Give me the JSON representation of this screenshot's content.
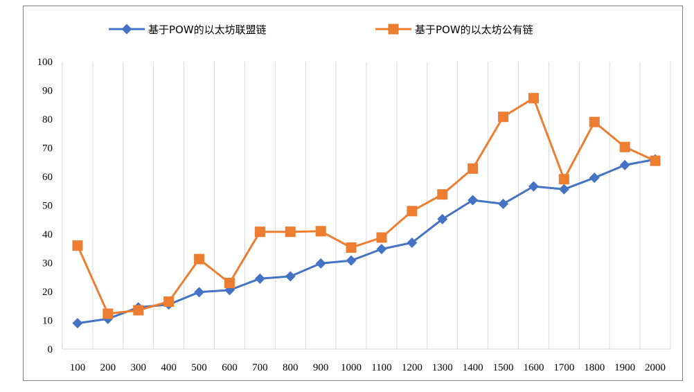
{
  "chart_data": {
    "type": "line",
    "title": "",
    "xlabel": "",
    "ylabel": "",
    "categories": [
      "100",
      "200",
      "300",
      "400",
      "500",
      "600",
      "700",
      "800",
      "900",
      "1000",
      "1100",
      "1200",
      "1300",
      "1400",
      "1500",
      "1600",
      "1700",
      "1800",
      "1900",
      "2000"
    ],
    "ylim": [
      0,
      100
    ],
    "yticks": [
      0,
      10,
      20,
      30,
      40,
      50,
      60,
      70,
      80,
      90,
      100
    ],
    "grid": "vertical",
    "legend_position": "top",
    "series": [
      {
        "name": "基于POW的以太坊联盟链",
        "color": "#4472c4",
        "marker": "diamond",
        "values": [
          9,
          10.5,
          14.5,
          15.5,
          19.8,
          20.5,
          24.5,
          25.3,
          29.8,
          30.8,
          34.8,
          37,
          45.2,
          51.8,
          50.5,
          56.6,
          55.6,
          59.6,
          64,
          66
        ]
      },
      {
        "name": "基于POW的以太坊公有链",
        "color": "#ed7d31",
        "marker": "square",
        "values": [
          36,
          12.3,
          13.5,
          16.5,
          31.3,
          23,
          40.8,
          40.8,
          41,
          35.3,
          38.8,
          48,
          53.8,
          62.8,
          80.8,
          87.3,
          59.1,
          79,
          70.3,
          65.5
        ]
      }
    ]
  }
}
